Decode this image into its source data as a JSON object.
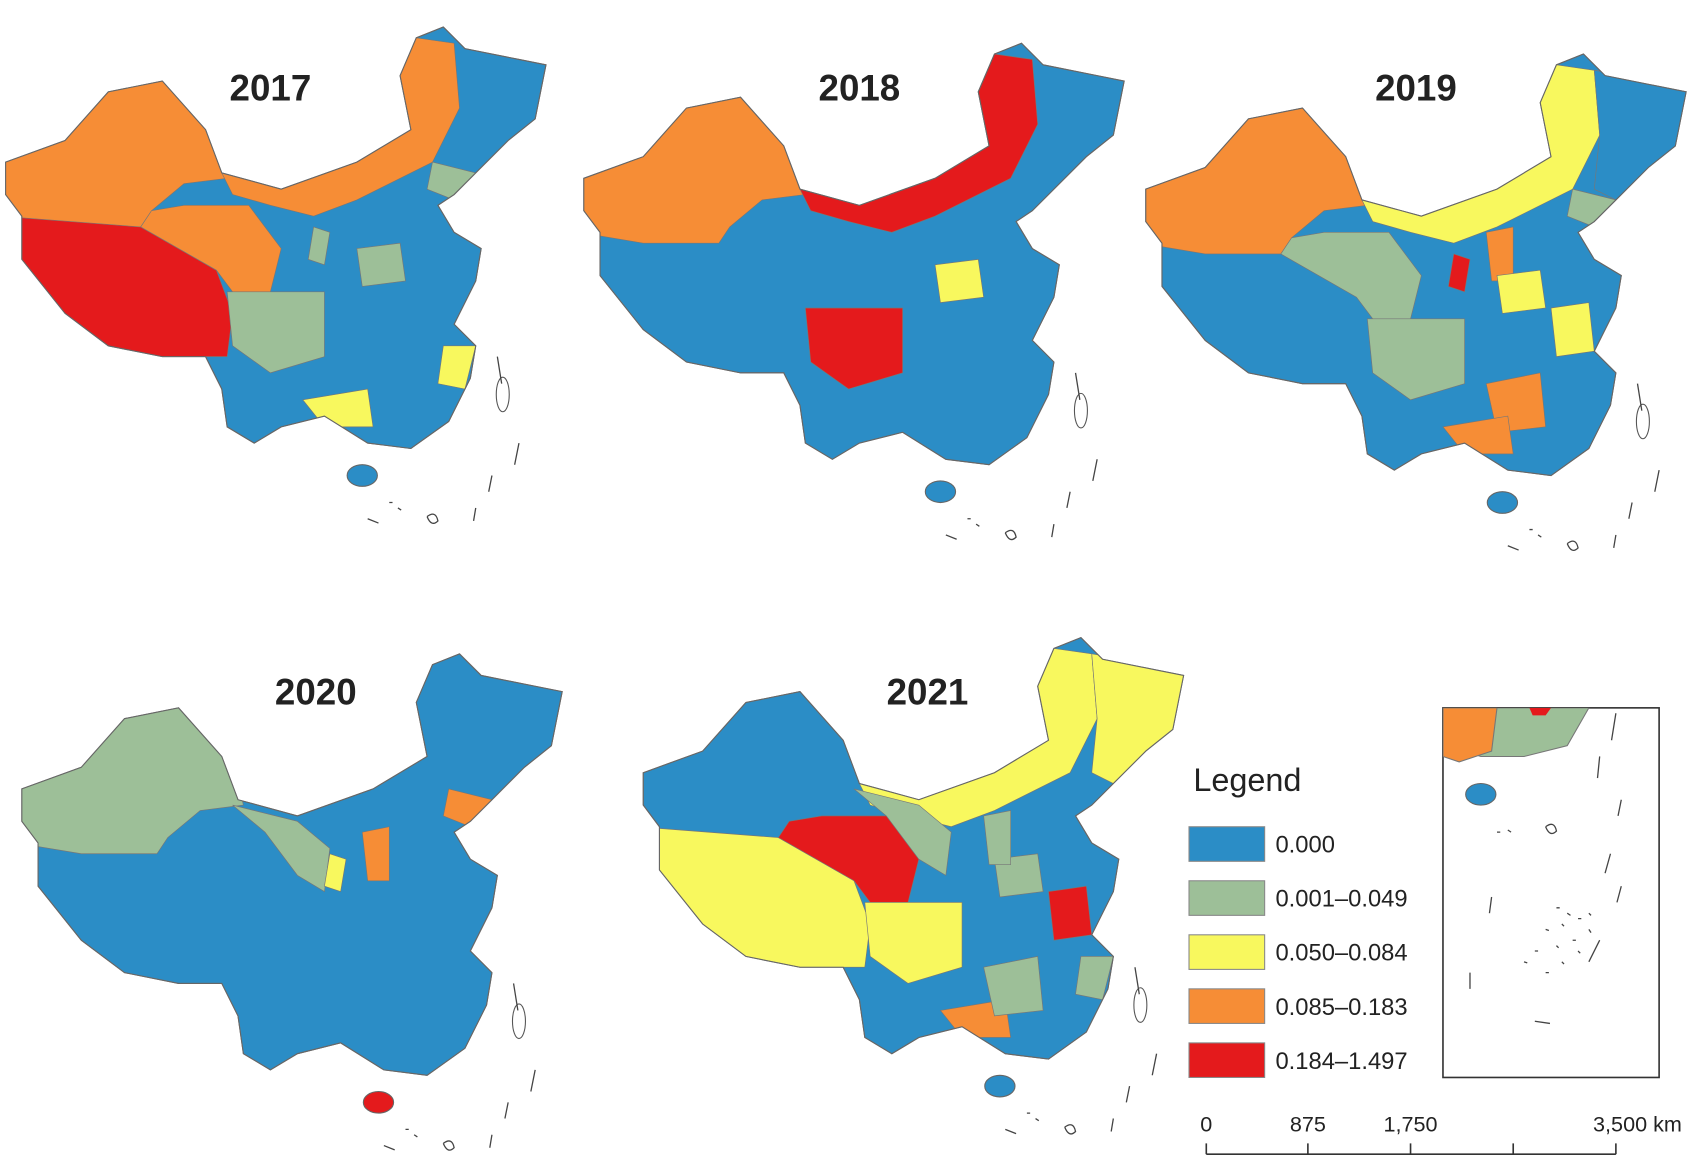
{
  "maps": [
    {
      "title": "2017"
    },
    {
      "title": "2018"
    },
    {
      "title": "2019"
    },
    {
      "title": "2020"
    },
    {
      "title": "2021"
    }
  ],
  "legend": {
    "title": "Legend",
    "items": [
      {
        "label": "0.000",
        "color": "#2b8dc6"
      },
      {
        "label": "0.001–0.049",
        "color": "#9dbf98"
      },
      {
        "label": "0.050–0.084",
        "color": "#f8f85e"
      },
      {
        "label": "0.085–0.183",
        "color": "#f68d36"
      },
      {
        "label": "0.184–1.497",
        "color": "#e41a1c"
      }
    ]
  },
  "scale_bar": {
    "labels": [
      "0",
      "875",
      "1,750",
      "3,500 km"
    ]
  }
}
